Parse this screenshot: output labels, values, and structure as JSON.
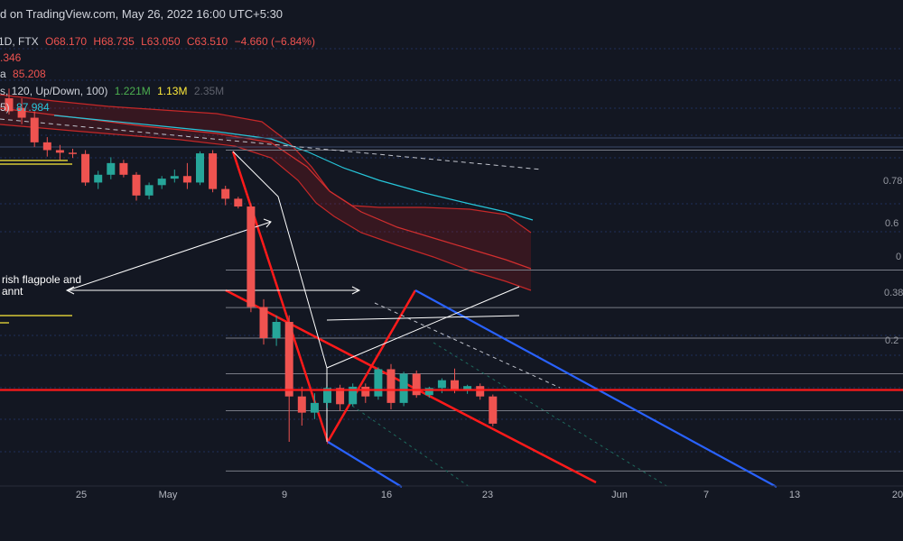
{
  "header": {
    "published": "d on TradingView.com, May 26, 2022 16:00 UTC+5:30",
    "symbol": "1D, FTX",
    "open": "O68.170",
    "high": "H68.735",
    "low": "L63.050",
    "close": "C63.510",
    "change": "−4.660 (−6.84%)",
    "ind1_value": ".346",
    "ind2_name": "a",
    "ind2_value": "85.208",
    "vol_params": "s, 120, Up/Down, 100)",
    "vol_up": "1.221M",
    "vol_down": "1.13M",
    "vol_total": "2.35M",
    "ind4_params": "5)",
    "ind4_value": "87.984"
  },
  "annotation": {
    "line1": "rish flagpole and",
    "line2": "annt"
  },
  "fib_labels": [
    "0.78",
    "0.6",
    "0",
    "0.38",
    "0.2"
  ],
  "colors": {
    "background": "#131722",
    "up": "#26a69a",
    "down": "#ef5350",
    "bull_text": "#4caf50",
    "yellow": "#ffeb3b",
    "grid": "#2a2e39",
    "fib": "#787b86",
    "channel": "#2962ff",
    "pitchfork": "#ff1a1a",
    "ma_teal": "#26c6da"
  },
  "chart_data": {
    "type": "candlestick",
    "xaxis_ticks": [
      "25",
      "May",
      "9",
      "16",
      "23",
      "Jun",
      "7",
      "13",
      "20"
    ],
    "ylim": [
      40,
      108
    ],
    "price_unit": "USD",
    "candles": [
      {
        "o": 98.0,
        "h": 99.5,
        "l": 95.5,
        "c": 96.0
      },
      {
        "o": 96.5,
        "h": 98.0,
        "l": 94.0,
        "c": 95.0
      },
      {
        "o": 95.0,
        "h": 96.0,
        "l": 90.5,
        "c": 91.2
      },
      {
        "o": 91.2,
        "h": 92.0,
        "l": 89.0,
        "c": 90.0
      },
      {
        "o": 90.0,
        "h": 90.8,
        "l": 88.5,
        "c": 89.6
      },
      {
        "o": 89.6,
        "h": 90.2,
        "l": 88.8,
        "c": 89.4
      },
      {
        "o": 89.4,
        "h": 90.0,
        "l": 84.5,
        "c": 85.0
      },
      {
        "o": 85.0,
        "h": 86.8,
        "l": 84.0,
        "c": 86.2
      },
      {
        "o": 86.2,
        "h": 88.9,
        "l": 85.5,
        "c": 88.0
      },
      {
        "o": 88.0,
        "h": 88.5,
        "l": 85.8,
        "c": 86.2
      },
      {
        "o": 86.2,
        "h": 86.6,
        "l": 82.2,
        "c": 83.0
      },
      {
        "o": 83.0,
        "h": 85.0,
        "l": 82.4,
        "c": 84.6
      },
      {
        "o": 84.6,
        "h": 86.0,
        "l": 84.0,
        "c": 85.6
      },
      {
        "o": 85.6,
        "h": 87.0,
        "l": 85.0,
        "c": 86.0
      },
      {
        "o": 86.0,
        "h": 88.0,
        "l": 84.0,
        "c": 85.0
      },
      {
        "o": 85.0,
        "h": 89.8,
        "l": 84.6,
        "c": 89.5
      },
      {
        "o": 89.5,
        "h": 90.0,
        "l": 83.5,
        "c": 84.0
      },
      {
        "o": 84.0,
        "h": 84.5,
        "l": 81.5,
        "c": 82.5
      },
      {
        "o": 82.5,
        "h": 82.8,
        "l": 81.0,
        "c": 81.3
      },
      {
        "o": 81.3,
        "h": 81.8,
        "l": 65.0,
        "c": 65.8
      },
      {
        "o": 65.8,
        "h": 67.0,
        "l": 60.0,
        "c": 61.0
      },
      {
        "o": 61.0,
        "h": 64.5,
        "l": 59.8,
        "c": 63.5
      },
      {
        "o": 63.5,
        "h": 64.5,
        "l": 45.0,
        "c": 52.0
      },
      {
        "o": 52.0,
        "h": 53.5,
        "l": 47.5,
        "c": 49.5
      },
      {
        "o": 49.5,
        "h": 52.5,
        "l": 48.5,
        "c": 51.0
      },
      {
        "o": 51.0,
        "h": 53.5,
        "l": 50.2,
        "c": 53.3
      },
      {
        "o": 53.3,
        "h": 53.8,
        "l": 49.8,
        "c": 50.8
      },
      {
        "o": 50.8,
        "h": 54.0,
        "l": 50.5,
        "c": 53.5
      },
      {
        "o": 53.5,
        "h": 54.0,
        "l": 51.0,
        "c": 52.0
      },
      {
        "o": 52.0,
        "h": 56.5,
        "l": 51.5,
        "c": 56.2
      },
      {
        "o": 56.2,
        "h": 57.0,
        "l": 50.0,
        "c": 51.0
      },
      {
        "o": 51.0,
        "h": 55.8,
        "l": 50.5,
        "c": 55.5
      },
      {
        "o": 55.5,
        "h": 56.0,
        "l": 51.8,
        "c": 52.2
      },
      {
        "o": 52.2,
        "h": 53.5,
        "l": 51.8,
        "c": 53.3
      },
      {
        "o": 53.3,
        "h": 54.8,
        "l": 52.5,
        "c": 54.5
      },
      {
        "o": 54.5,
        "h": 56.3,
        "l": 52.5,
        "c": 53.0
      },
      {
        "o": 53.0,
        "h": 53.8,
        "l": 52.4,
        "c": 53.6
      },
      {
        "o": 53.6,
        "h": 54.0,
        "l": 51.5,
        "c": 52.0
      },
      {
        "o": 52.0,
        "h": 52.3,
        "l": 47.4,
        "c": 47.8
      }
    ],
    "horizontal_levels": [
      {
        "kind": "support",
        "price": 53.0
      },
      {
        "kind": "fib",
        "price": 90.0
      },
      {
        "kind": "fib",
        "price": 71.5
      },
      {
        "kind": "fib",
        "price": 65.7
      },
      {
        "kind": "fib",
        "price": 61.0
      },
      {
        "kind": "fib",
        "price": 55.5
      },
      {
        "kind": "fib",
        "price": 49.8
      },
      {
        "kind": "fib",
        "price": 40.5
      }
    ]
  }
}
